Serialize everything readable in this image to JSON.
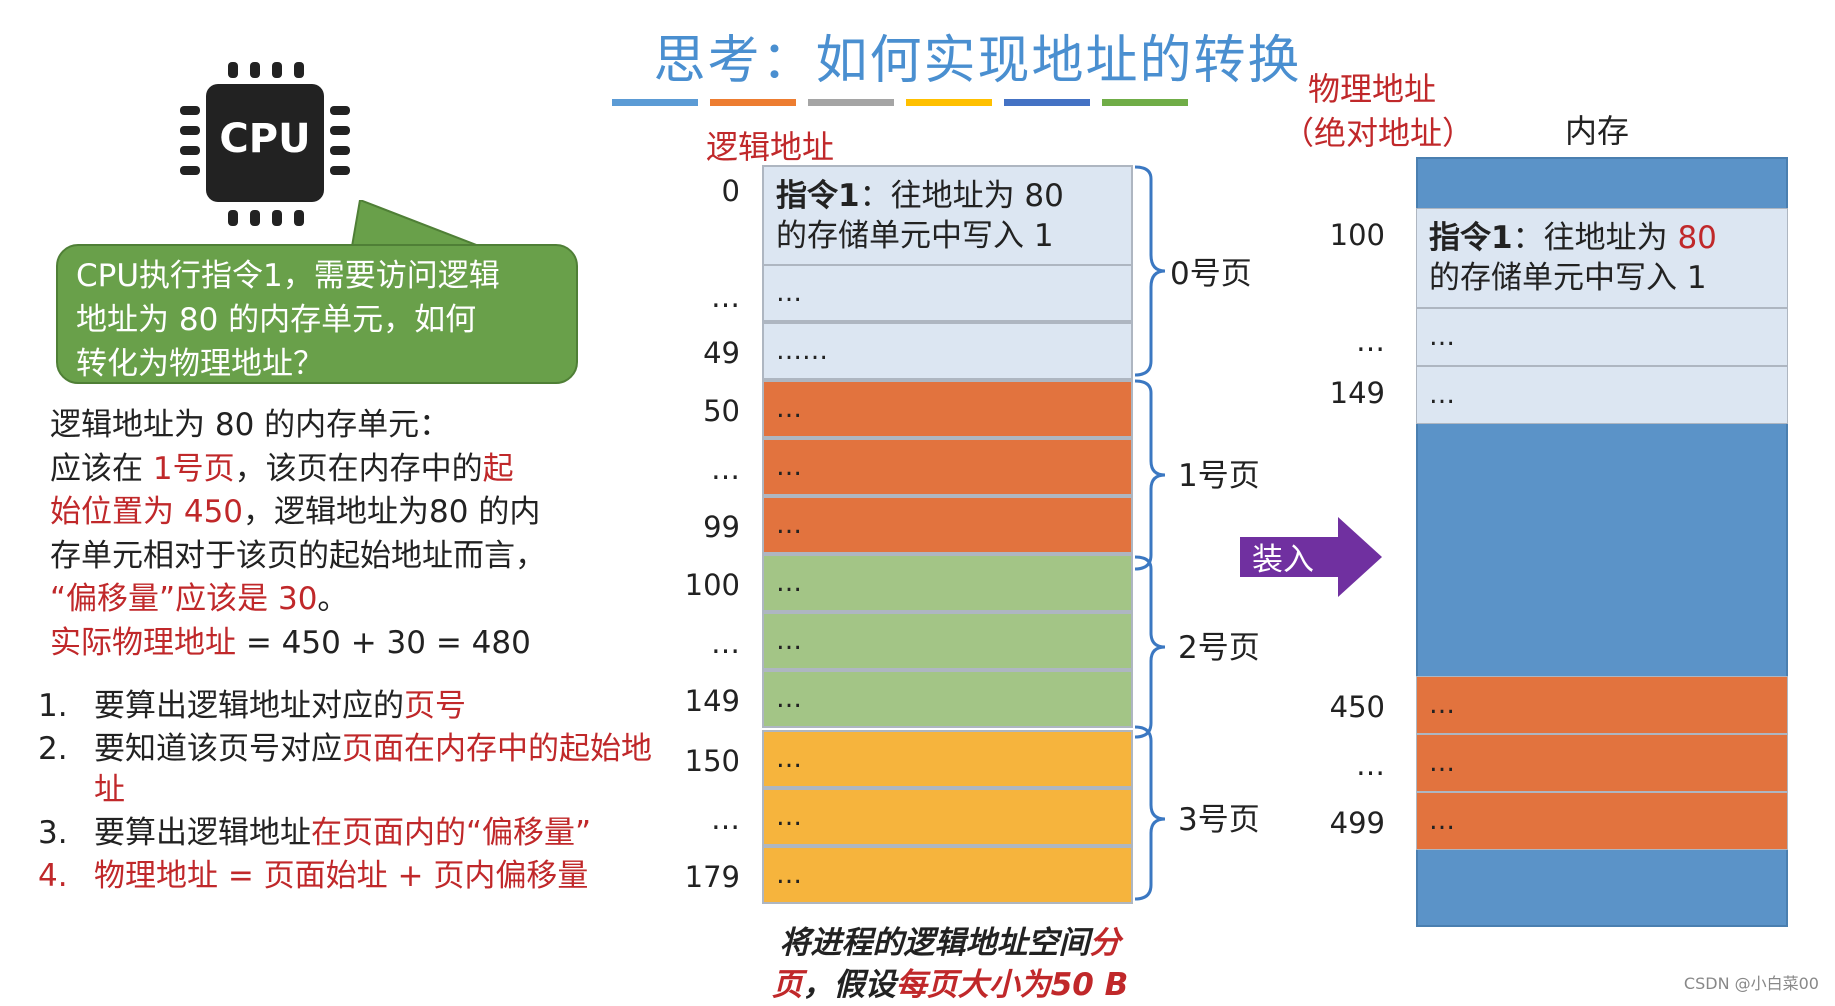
{
  "title": "思考：如何实现地址的转换",
  "stripe_colors": [
    "#5b9bd5",
    "#ed7d31",
    "#a5a5a5",
    "#ffc000",
    "#4472c4",
    "#70ad47"
  ],
  "cpu": {
    "label": "CPU"
  },
  "bubble": {
    "line1": "CPU执行指令1，需要访问逻辑",
    "line2": "地址为 80 的内存单元，如何",
    "line3": "转化为物理地址？"
  },
  "explanation": {
    "line1": "逻辑地址为 80 的内存单元：",
    "line2_a": "应该在 ",
    "line2_b": "1号页",
    "line2_c": "，该页在内存中的",
    "line2_d": "起",
    "line3_a": "始位置为 450",
    "line3_b": "，逻辑地址为80 的内",
    "line4": "存单元相对于该页的起始地址而言，",
    "line5_a": "“偏移量”应该是 30",
    "line5_b": "。",
    "line6_a": "实际物理地址",
    "line6_b": " = 450 + 30 = 480"
  },
  "steps": [
    {
      "num": "1.",
      "text_a": "要算出逻辑地址对应的",
      "text_b": "页号"
    },
    {
      "num": "2.",
      "text_a": "要知道该页号对应",
      "text_b": "页面在内存中的起始地址"
    },
    {
      "num": "3.",
      "text_a": "要算出逻辑地址",
      "text_b": "在页面内的“偏移量”"
    },
    {
      "num": "4.",
      "text_a": "",
      "text_b": "物理地址 = 页面始址 + 页内偏移量"
    }
  ],
  "logical": {
    "header": "逻辑地址",
    "addresses": [
      "0",
      "…",
      "49",
      "50",
      "…",
      "99",
      "100",
      "…",
      "149",
      "150",
      "…",
      "179"
    ],
    "cells": [
      {
        "bold": "指令1",
        "text": "：往地址为 80",
        "text2": "的存储单元中写入 1",
        "color": "#dce6f2"
      },
      {
        "text": "…",
        "color": "#dce6f2"
      },
      {
        "text": "……",
        "color": "#dce6f2"
      },
      {
        "text": "…",
        "color": "#e2733e"
      },
      {
        "text": "…",
        "color": "#e2733e"
      },
      {
        "text": "…",
        "color": "#e2733e"
      },
      {
        "text": "…",
        "color": "#a3c586"
      },
      {
        "text": "…",
        "color": "#a3c586"
      },
      {
        "text": "…",
        "color": "#a3c586"
      },
      {
        "text": "…",
        "color": "#f6b43d"
      },
      {
        "text": "…",
        "color": "#f6b43d"
      },
      {
        "text": "…",
        "color": "#f6b43d"
      }
    ],
    "pages": [
      "0号页",
      "1号页",
      "2号页",
      "3号页"
    ],
    "note_a": "将进程的逻辑地址空间",
    "note_b": "分",
    "note_c": "页",
    "note_d": "，假设",
    "note_e": "每页大小为50 B"
  },
  "load_arrow": {
    "label": "装入",
    "color": "#7030a0"
  },
  "physical": {
    "header_line1": "物理地址",
    "header_line2": "（绝对地址）",
    "memory_label": "内存",
    "addresses": [
      "100",
      "…",
      "149",
      "450",
      "…",
      "499"
    ],
    "cells": [
      {
        "bold": "指令1",
        "text": "：往地址为 ",
        "red": "80",
        "text2": "的存储单元中写入 1",
        "color": "#dce6f2"
      },
      {
        "text": "…",
        "color": "#dce6f2"
      },
      {
        "text": "…",
        "color": "#dce6f2"
      },
      {
        "text": "…",
        "color": "#e2733e"
      },
      {
        "text": "…",
        "color": "#e2733e"
      },
      {
        "text": "…",
        "color": "#e2733e"
      }
    ],
    "memory_bg": "#5b93c8"
  },
  "watermark": "CSDN @小白菜00"
}
